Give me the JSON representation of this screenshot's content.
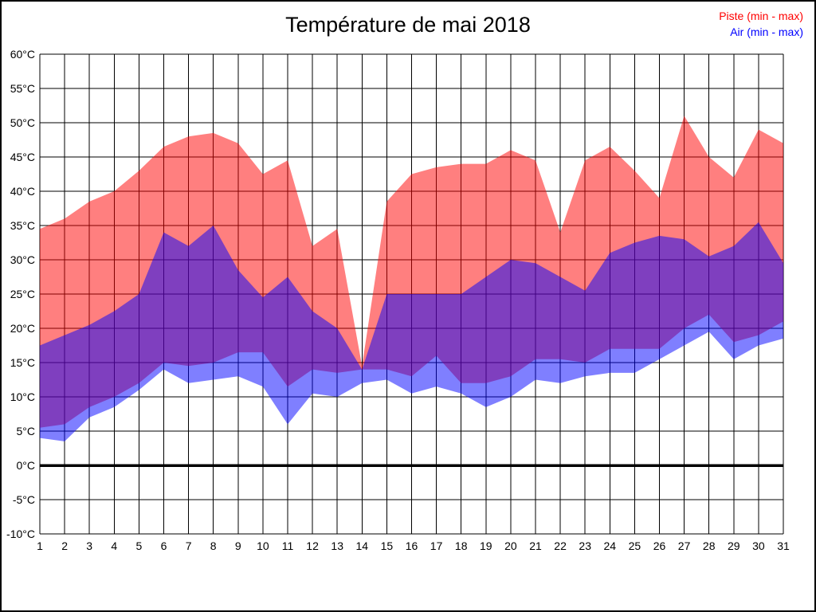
{
  "title": "Température de mai 2018",
  "legend": [
    {
      "label": "Piste (min - max)",
      "color": "#ff0000"
    },
    {
      "label": "Air (min - max)",
      "color": "#0000ff"
    }
  ],
  "chart_data": {
    "type": "area",
    "subtype": "min-max range bands",
    "x": [
      1,
      2,
      3,
      4,
      5,
      6,
      7,
      8,
      9,
      10,
      11,
      12,
      13,
      14,
      15,
      16,
      17,
      18,
      19,
      20,
      21,
      22,
      23,
      24,
      25,
      26,
      27,
      28,
      29,
      30,
      31
    ],
    "x_tick_labels": [
      "1",
      "2",
      "3",
      "4",
      "5",
      "6",
      "7",
      "8",
      "9",
      "10",
      "11",
      "12",
      "13",
      "14",
      "15",
      "16",
      "17",
      "18",
      "19",
      "20",
      "21",
      "22",
      "23",
      "24",
      "25",
      "26",
      "27",
      "28",
      "29",
      "30",
      "31"
    ],
    "y_tick_labels": [
      "60°C",
      "55°C",
      "50°C",
      "45°C",
      "40°C",
      "35°C",
      "30°C",
      "25°C",
      "20°C",
      "15°C",
      "10°C",
      "5°C",
      "0°C",
      "-5°C",
      "-10°C"
    ],
    "ylim": [
      -10,
      60
    ],
    "ytick_step": 5,
    "xlim": [
      1,
      31
    ],
    "grid": true,
    "zero_line": true,
    "legend_position": "top-right",
    "title": "Température de mai 2018",
    "series": [
      {
        "name": "Piste (min - max)",
        "color": "#ff0000",
        "fill_alpha": 0.5,
        "max": [
          34.5,
          36,
          38.5,
          40,
          43,
          46.5,
          48,
          48.5,
          47,
          42.5,
          44.5,
          32,
          34.5,
          14.5,
          38.5,
          42.5,
          43.5,
          44,
          44,
          46,
          44.5,
          34,
          44.5,
          46.5,
          43,
          39,
          51,
          45,
          42,
          49,
          47
        ],
        "min": [
          5.5,
          6,
          8.5,
          10,
          12,
          15,
          14.5,
          15,
          16.5,
          16.5,
          11.5,
          14,
          13.5,
          14,
          14,
          13,
          16,
          12,
          12,
          13,
          15.5,
          15.5,
          15,
          17,
          17,
          17,
          20,
          22,
          18,
          19,
          21
        ]
      },
      {
        "name": "Air (min - max)",
        "color": "#0000ff",
        "fill_alpha": 0.5,
        "max": [
          17.5,
          19,
          20.5,
          22.5,
          25,
          34,
          32,
          35,
          28.5,
          24.5,
          27.5,
          22.5,
          20,
          14,
          25,
          25,
          25,
          25,
          27.5,
          30,
          29.5,
          27.5,
          25.5,
          31,
          32.5,
          33.5,
          33,
          30.5,
          32,
          35.5,
          29.5
        ],
        "min": [
          4,
          3.5,
          7,
          8.5,
          11,
          14,
          12,
          12.5,
          13,
          11.5,
          6,
          10.5,
          10,
          12,
          12.5,
          10.5,
          11.5,
          10.5,
          8.5,
          10,
          12.5,
          12,
          13,
          13.5,
          13.5,
          15.5,
          17.5,
          19.5,
          15.5,
          17.5,
          18.5
        ]
      }
    ]
  }
}
